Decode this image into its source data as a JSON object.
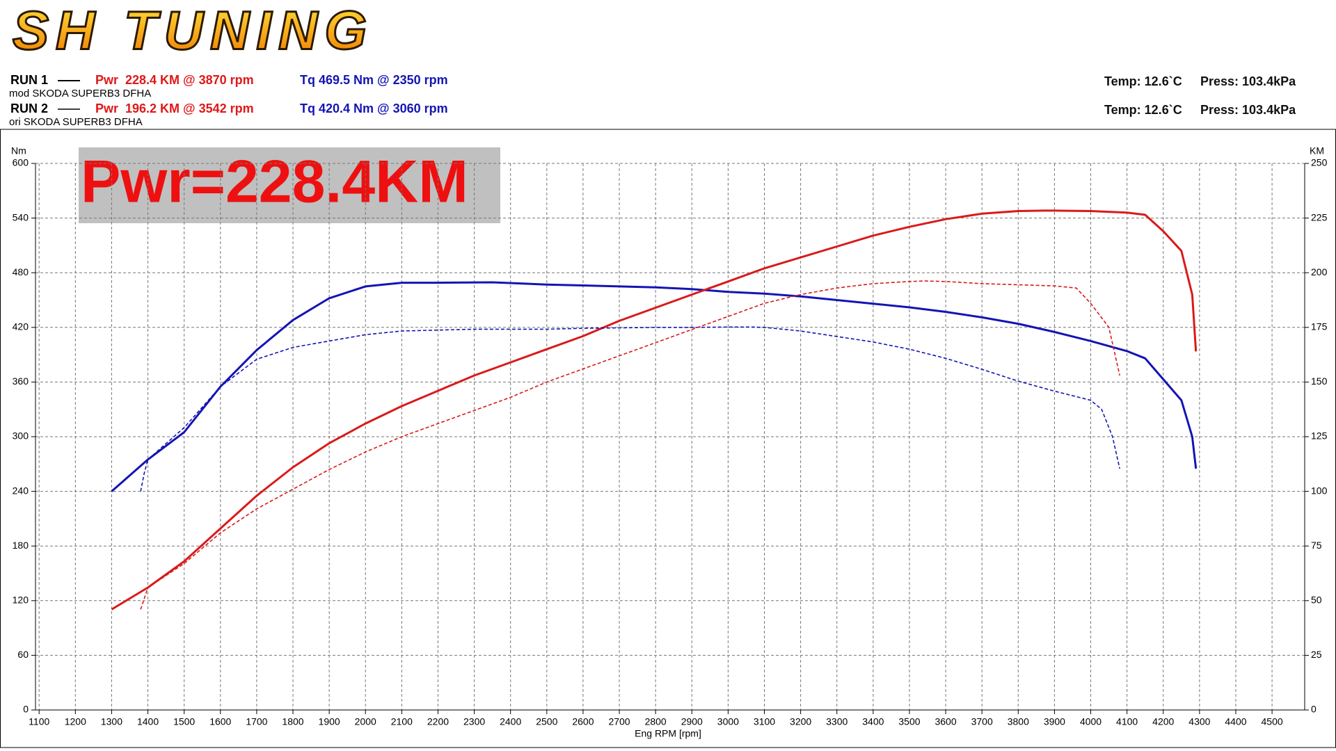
{
  "chart_data": {
    "type": "line",
    "logo": "SH TUNING",
    "runs": [
      {
        "label": "RUN 1",
        "car": "mod SKODA SUPERB3 DFHA",
        "pwr": "Pwr  228.4 KM @ 3870 rpm",
        "tq": "Tq 469.5 Nm @ 2350 rpm",
        "temp": "Temp: 12.6`C",
        "press": "Press: 103.4kPa"
      },
      {
        "label": "RUN 2",
        "car": "ori SKODA SUPERB3 DFHA",
        "pwr": "Pwr  196.2 KM @ 3542 rpm",
        "tq": "Tq 420.4 Nm @ 3060 rpm",
        "temp": "Temp: 12.6`C",
        "press": "Press: 103.4kPa"
      }
    ],
    "annotation": "Pwr=228.4KM",
    "x_label": "Eng RPM [rpm]",
    "y_label": "Nm",
    "y2_label": "KM",
    "xlim": [
      1090,
      4590
    ],
    "ylim": [
      0,
      600
    ],
    "y2lim": [
      0,
      250
    ],
    "xticks": [
      1100,
      1200,
      1300,
      1400,
      1500,
      1600,
      1700,
      1800,
      1900,
      2000,
      2100,
      2200,
      2300,
      2400,
      2500,
      2600,
      2700,
      2800,
      2900,
      3000,
      3100,
      3200,
      3300,
      3400,
      3500,
      3600,
      3700,
      3800,
      3900,
      4000,
      4100,
      4200,
      4300,
      4400,
      4500
    ],
    "yticks": [
      0,
      60,
      120,
      180,
      240,
      300,
      360,
      420,
      480,
      540,
      600
    ],
    "y2ticks": [
      0,
      25,
      50,
      75,
      100,
      125,
      150,
      175,
      200,
      225,
      250
    ],
    "grid": true,
    "series": [
      {
        "color": "#1414b4",
        "dashed": false,
        "axis": "y",
        "x": [
          1300,
          1400,
          1500,
          1600,
          1700,
          1800,
          1900,
          2000,
          2100,
          2200,
          2350,
          2500,
          2600,
          2700,
          2800,
          2900,
          3000,
          3100,
          3200,
          3300,
          3400,
          3500,
          3600,
          3700,
          3800,
          3900,
          4000,
          4100,
          4150,
          4200,
          4250,
          4280,
          4290
        ],
        "values": [
          240,
          275,
          305,
          355,
          395,
          428,
          452,
          465,
          469,
          469,
          469.5,
          467,
          466,
          465,
          464,
          462,
          459,
          457,
          454,
          450,
          446,
          442,
          437,
          431,
          424,
          415,
          405,
          394,
          386,
          363,
          340,
          300,
          265
        ]
      },
      {
        "color": "#d91a1a",
        "dashed": false,
        "axis": "y2",
        "x": [
          1300,
          1400,
          1500,
          1600,
          1700,
          1800,
          1900,
          2000,
          2100,
          2200,
          2300,
          2400,
          2500,
          2600,
          2700,
          2800,
          2900,
          3000,
          3100,
          3200,
          3300,
          3400,
          3500,
          3600,
          3700,
          3800,
          3870,
          3900,
          4000,
          4100,
          4150,
          4200,
          4250,
          4280,
          4290
        ],
        "values": [
          46,
          56,
          68,
          83,
          98,
          111,
          122,
          131,
          139,
          146,
          153,
          159,
          165,
          171,
          178,
          184,
          190,
          196,
          202,
          207,
          212,
          217,
          221,
          224.5,
          227,
          228.2,
          228.4,
          228.4,
          228.2,
          227.5,
          226.5,
          219,
          210,
          190,
          164
        ]
      },
      {
        "color": "#1414b4",
        "dashed": true,
        "axis": "y",
        "x": [
          1380,
          1390,
          1400,
          1500,
          1600,
          1700,
          1800,
          1900,
          2000,
          2100,
          2200,
          2300,
          2400,
          2500,
          2600,
          2700,
          2800,
          2900,
          3000,
          3060,
          3100,
          3200,
          3300,
          3400,
          3500,
          3600,
          3700,
          3800,
          3900,
          4000,
          4030,
          4060,
          4080
        ],
        "values": [
          240,
          260,
          275,
          310,
          355,
          385,
          398,
          405,
          412,
          416,
          417,
          418,
          418,
          418,
          419,
          419.5,
          420,
          420,
          420.4,
          420.4,
          420,
          416,
          410,
          404,
          396,
          386,
          374,
          361,
          350,
          340,
          330,
          300,
          265
        ]
      },
      {
        "color": "#d91a1a",
        "dashed": true,
        "axis": "y2",
        "x": [
          1380,
          1400,
          1500,
          1600,
          1700,
          1800,
          1900,
          2000,
          2100,
          2200,
          2300,
          2400,
          2500,
          2600,
          2700,
          2800,
          2900,
          3000,
          3100,
          3200,
          3300,
          3400,
          3500,
          3542,
          3600,
          3700,
          3800,
          3900,
          3960,
          4000,
          4050,
          4080
        ],
        "values": [
          46,
          56,
          67,
          81,
          92,
          101,
          110,
          118,
          125,
          131,
          137,
          143,
          150,
          156,
          162,
          168,
          174,
          180,
          186,
          190,
          193,
          195,
          196,
          196.2,
          196,
          195,
          194.5,
          194,
          193,
          186,
          175,
          153
        ]
      }
    ]
  }
}
